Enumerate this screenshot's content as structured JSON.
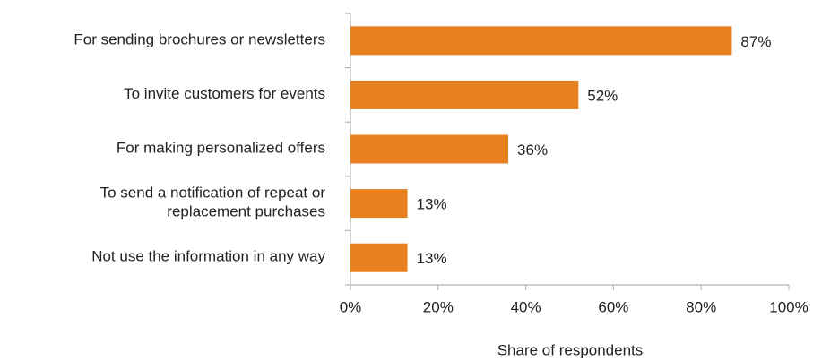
{
  "chart_data": {
    "type": "bar",
    "orientation": "horizontal",
    "categories": [
      "For sending brochures or newsletters",
      "To invite customers for events",
      "For making personalized offers",
      "To send a notification of repeat or\nreplacement purchases",
      "Not use the information in any way"
    ],
    "values": [
      87,
      52,
      36,
      13,
      13
    ],
    "value_labels": [
      "87%",
      "52%",
      "36%",
      "13%",
      "13%"
    ],
    "color": "#e8801f",
    "xlabel": "Share of respondents",
    "xlim": [
      0,
      100
    ],
    "xticks": [
      {
        "value": 0,
        "label": "0%"
      },
      {
        "value": 20,
        "label": "20%"
      },
      {
        "value": 40,
        "label": "40%"
      },
      {
        "value": 60,
        "label": "60%"
      },
      {
        "value": 80,
        "label": "80%"
      },
      {
        "value": 100,
        "label": "100%"
      }
    ]
  }
}
